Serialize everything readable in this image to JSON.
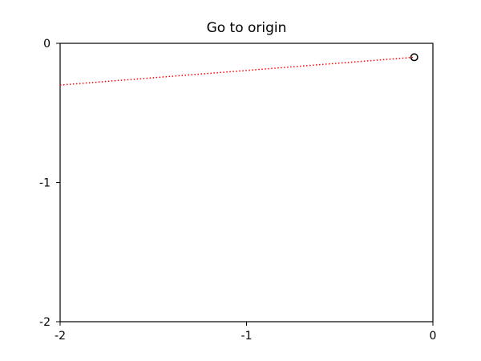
{
  "chart_data": {
    "type": "line",
    "title": "Go to origin",
    "xlabel": "",
    "ylabel": "",
    "xlim": [
      -2,
      0
    ],
    "ylim": [
      -2,
      0
    ],
    "x_ticks": [
      -2,
      -1,
      0
    ],
    "y_ticks": [
      0,
      -1,
      -2
    ],
    "x_tick_labels": [
      "-2",
      "-1",
      "0"
    ],
    "y_tick_labels": [
      "0",
      "-1",
      "-2"
    ],
    "grid": false,
    "series": [
      {
        "style": "dotted",
        "color": "#ff0000",
        "x": [
          -2.0,
          -0.1
        ],
        "y": [
          -0.3,
          -0.1
        ]
      },
      {
        "style": "marker-hollow-circle",
        "color": "#000000",
        "x": [
          -0.1
        ],
        "y": [
          -0.1
        ]
      }
    ]
  }
}
